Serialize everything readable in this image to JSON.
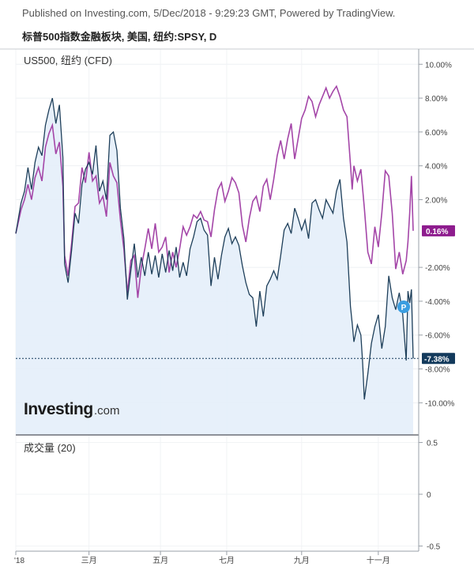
{
  "header": {
    "published": "Published on Investing.com, 5/Dec/2018 - 9:29:23 GMT, Powered by TradingView.",
    "title": "标普500指数金融板块, 美国, 纽约:SPSY, D"
  },
  "main_pane": {
    "symbol_label": "US500, 纽约 (CFD)",
    "watermark_text": "Investing",
    "watermark_suffix": ".com"
  },
  "volume_pane": {
    "label": "成交量 (20)"
  },
  "markers": {
    "p_badge": "P"
  },
  "colors": {
    "main_series": "#1e3f5a",
    "main_fill": "#e4eef9",
    "compare_series": "#a446a8",
    "compare_badge": "#8e1c8e",
    "main_badge": "#133a5c",
    "p_badge_bg": "#3a9de0"
  },
  "chart_data": [
    {
      "type": "line",
      "y_unit": "%",
      "ylim": [
        -11.9,
        10.9
      ],
      "y_ticks": [
        "10.00%",
        "8.00%",
        "6.00%",
        "4.00%",
        "2.00%",
        "-2.00%",
        "-4.00%",
        "-6.00%",
        "-8.00%",
        "-10.00%"
      ],
      "x_ticks": [
        "'18",
        "三月",
        "五月",
        "七月",
        "九月",
        "十一月"
      ],
      "current_labels": [
        "0.16%",
        "-7.38%"
      ],
      "grid": true,
      "series": [
        {
          "name": "标普500指数金融板块",
          "role": "main",
          "area_fill": true,
          "points": [
            [
              0,
              0.0
            ],
            [
              3,
              1.8
            ],
            [
              5,
              2.5
            ],
            [
              7,
              3.9
            ],
            [
              9,
              2.6
            ],
            [
              11,
              4.2
            ],
            [
              13,
              5.1
            ],
            [
              15,
              4.6
            ],
            [
              17,
              6.4
            ],
            [
              19,
              7.3
            ],
            [
              21,
              8.0
            ],
            [
              23,
              6.5
            ],
            [
              25,
              7.6
            ],
            [
              27,
              4.5
            ],
            [
              28,
              -1.8
            ],
            [
              30,
              -2.9
            ],
            [
              32,
              -1.0
            ],
            [
              34,
              1.2
            ],
            [
              36,
              0.6
            ],
            [
              38,
              2.9
            ],
            [
              40,
              3.8
            ],
            [
              42,
              4.2
            ],
            [
              44,
              3.5
            ],
            [
              46,
              5.2
            ],
            [
              48,
              2.5
            ],
            [
              50,
              3.1
            ],
            [
              52,
              2.0
            ],
            [
              54,
              5.8
            ],
            [
              56,
              6.0
            ],
            [
              58,
              4.9
            ],
            [
              60,
              1.5
            ],
            [
              62,
              -0.3
            ],
            [
              64,
              -3.9
            ],
            [
              66,
              -2.2
            ],
            [
              68,
              -0.6
            ],
            [
              70,
              -2.6
            ],
            [
              72,
              -1.4
            ],
            [
              74,
              -2.5
            ],
            [
              76,
              -1.1
            ],
            [
              78,
              -2.4
            ],
            [
              80,
              -1.3
            ],
            [
              82,
              -2.6
            ],
            [
              84,
              -1.2
            ],
            [
              86,
              -2.3
            ],
            [
              88,
              -1.0
            ],
            [
              90,
              -2.2
            ],
            [
              92,
              -0.8
            ],
            [
              94,
              -2.6
            ],
            [
              96,
              -1.7
            ],
            [
              98,
              -2.5
            ],
            [
              100,
              -0.9
            ],
            [
              102,
              -0.2
            ],
            [
              104,
              0.7
            ],
            [
              106,
              0.9
            ],
            [
              108,
              0.2
            ],
            [
              110,
              -0.1
            ],
            [
              112,
              -3.1
            ],
            [
              114,
              -1.4
            ],
            [
              116,
              -2.7
            ],
            [
              118,
              -1.3
            ],
            [
              120,
              -0.2
            ],
            [
              122,
              0.3
            ],
            [
              124,
              -0.6
            ],
            [
              126,
              -0.2
            ],
            [
              128,
              -0.7
            ],
            [
              130,
              -1.9
            ],
            [
              132,
              -2.9
            ],
            [
              134,
              -3.6
            ],
            [
              136,
              -3.8
            ],
            [
              138,
              -5.5
            ],
            [
              140,
              -3.4
            ],
            [
              142,
              -4.9
            ],
            [
              144,
              -3.1
            ],
            [
              146,
              -2.7
            ],
            [
              148,
              -2.2
            ],
            [
              150,
              -2.7
            ],
            [
              152,
              -1.3
            ],
            [
              154,
              0.2
            ],
            [
              156,
              0.6
            ],
            [
              158,
              0.0
            ],
            [
              160,
              1.5
            ],
            [
              162,
              0.9
            ],
            [
              164,
              0.2
            ],
            [
              166,
              0.8
            ],
            [
              168,
              -0.3
            ],
            [
              170,
              1.8
            ],
            [
              172,
              2.0
            ],
            [
              174,
              1.4
            ],
            [
              176,
              0.9
            ],
            [
              178,
              2.0
            ],
            [
              180,
              1.6
            ],
            [
              182,
              1.2
            ],
            [
              184,
              2.5
            ],
            [
              186,
              3.2
            ],
            [
              188,
              0.9
            ],
            [
              190,
              -0.5
            ],
            [
              192,
              -4.3
            ],
            [
              193,
              -5.3
            ],
            [
              194,
              -6.4
            ],
            [
              196,
              -5.4
            ],
            [
              198,
              -6.0
            ],
            [
              199,
              -7.6
            ],
            [
              200,
              -9.8
            ],
            [
              202,
              -8.3
            ],
            [
              204,
              -6.5
            ],
            [
              206,
              -5.5
            ],
            [
              208,
              -4.8
            ],
            [
              210,
              -6.8
            ],
            [
              212,
              -5.5
            ],
            [
              214,
              -2.5
            ],
            [
              216,
              -3.8
            ],
            [
              218,
              -4.5
            ],
            [
              220,
              -3.5
            ],
            [
              222,
              -4.8
            ],
            [
              224,
              -7.5
            ],
            [
              225,
              -3.4
            ],
            [
              226,
              -4.1
            ],
            [
              227,
              -3.3
            ],
            [
              228,
              -7.38
            ]
          ]
        },
        {
          "name": "US500, 纽约 (CFD)",
          "role": "compare",
          "points": [
            [
              0,
              0.0
            ],
            [
              3,
              1.4
            ],
            [
              5,
              2.0
            ],
            [
              7,
              2.9
            ],
            [
              9,
              2.0
            ],
            [
              11,
              3.3
            ],
            [
              13,
              3.9
            ],
            [
              15,
              3.1
            ],
            [
              17,
              5.1
            ],
            [
              19,
              5.9
            ],
            [
              21,
              6.4
            ],
            [
              23,
              4.7
            ],
            [
              25,
              5.4
            ],
            [
              27,
              2.8
            ],
            [
              28,
              -1.3
            ],
            [
              30,
              -2.5
            ],
            [
              32,
              -0.6
            ],
            [
              34,
              1.6
            ],
            [
              36,
              1.8
            ],
            [
              38,
              3.9
            ],
            [
              40,
              3.0
            ],
            [
              42,
              4.8
            ],
            [
              44,
              3.1
            ],
            [
              46,
              3.4
            ],
            [
              48,
              1.8
            ],
            [
              50,
              2.2
            ],
            [
              52,
              1.0
            ],
            [
              54,
              4.2
            ],
            [
              56,
              3.4
            ],
            [
              58,
              3.0
            ],
            [
              60,
              0.8
            ],
            [
              62,
              -0.9
            ],
            [
              64,
              -3.5
            ],
            [
              66,
              -1.6
            ],
            [
              68,
              -1.3
            ],
            [
              70,
              -3.8
            ],
            [
              72,
              -2.0
            ],
            [
              74,
              -0.9
            ],
            [
              76,
              0.3
            ],
            [
              78,
              -0.9
            ],
            [
              80,
              0.6
            ],
            [
              82,
              -1.1
            ],
            [
              84,
              -0.8
            ],
            [
              86,
              -0.2
            ],
            [
              88,
              -2.3
            ],
            [
              90,
              -1.1
            ],
            [
              92,
              -2.0
            ],
            [
              94,
              -0.9
            ],
            [
              96,
              0.4
            ],
            [
              98,
              -0.1
            ],
            [
              100,
              0.4
            ],
            [
              102,
              1.1
            ],
            [
              104,
              0.9
            ],
            [
              106,
              1.3
            ],
            [
              108,
              0.8
            ],
            [
              110,
              0.7
            ],
            [
              112,
              -0.2
            ],
            [
              114,
              1.4
            ],
            [
              116,
              2.6
            ],
            [
              118,
              3.0
            ],
            [
              120,
              1.9
            ],
            [
              122,
              2.5
            ],
            [
              124,
              3.3
            ],
            [
              126,
              3.0
            ],
            [
              128,
              2.4
            ],
            [
              130,
              0.5
            ],
            [
              132,
              -0.5
            ],
            [
              134,
              0.9
            ],
            [
              136,
              1.9
            ],
            [
              138,
              2.2
            ],
            [
              140,
              1.3
            ],
            [
              142,
              2.8
            ],
            [
              144,
              3.2
            ],
            [
              146,
              2.0
            ],
            [
              148,
              3.2
            ],
            [
              150,
              4.6
            ],
            [
              152,
              5.5
            ],
            [
              154,
              4.4
            ],
            [
              156,
              5.6
            ],
            [
              158,
              6.5
            ],
            [
              160,
              4.4
            ],
            [
              162,
              5.6
            ],
            [
              164,
              6.8
            ],
            [
              166,
              7.3
            ],
            [
              168,
              8.1
            ],
            [
              170,
              7.8
            ],
            [
              172,
              6.9
            ],
            [
              174,
              7.6
            ],
            [
              176,
              8.1
            ],
            [
              178,
              8.6
            ],
            [
              180,
              8.0
            ],
            [
              182,
              8.4
            ],
            [
              184,
              8.7
            ],
            [
              186,
              8.1
            ],
            [
              188,
              7.3
            ],
            [
              190,
              6.9
            ],
            [
              192,
              4.1
            ],
            [
              193,
              2.6
            ],
            [
              194,
              4.0
            ],
            [
              196,
              3.1
            ],
            [
              198,
              3.8
            ],
            [
              200,
              1.5
            ],
            [
              202,
              -1.1
            ],
            [
              204,
              -1.8
            ],
            [
              206,
              0.4
            ],
            [
              208,
              -0.8
            ],
            [
              210,
              1.2
            ],
            [
              212,
              3.7
            ],
            [
              214,
              3.4
            ],
            [
              216,
              1.2
            ],
            [
              218,
              -2.1
            ],
            [
              220,
              -1.1
            ],
            [
              222,
              -2.4
            ],
            [
              224,
              -1.6
            ],
            [
              225,
              -0.5
            ],
            [
              226,
              1.2
            ],
            [
              227,
              3.4
            ],
            [
              228,
              0.16
            ]
          ]
        }
      ]
    },
    {
      "type": "bar",
      "name": "成交量 (20)",
      "ylim": [
        -0.55,
        0.55
      ],
      "y_ticks": [
        "0.5",
        "0",
        "-0.5"
      ],
      "values": []
    }
  ]
}
